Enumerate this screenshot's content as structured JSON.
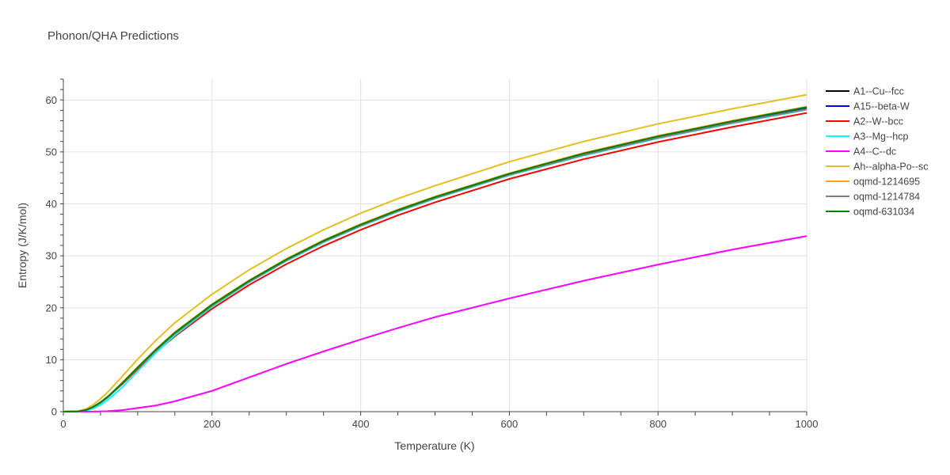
{
  "chart_data": {
    "type": "line",
    "title": "Phonon/QHA Predictions",
    "xlabel": "Temperature (K)",
    "ylabel": "Entropy (J/K/mol)",
    "xlim": [
      0,
      1000
    ],
    "ylim": [
      0,
      64
    ],
    "xticks": [
      0,
      200,
      400,
      600,
      800,
      1000
    ],
    "yticks": [
      0,
      10,
      20,
      30,
      40,
      50,
      60
    ],
    "grid": true,
    "legend_position": "right",
    "series": [
      {
        "name": "A1--Cu--fcc",
        "color": "#000000",
        "x": [
          0,
          20,
          30,
          40,
          50,
          60,
          80,
          100,
          125,
          150,
          200,
          250,
          300,
          350,
          400,
          450,
          500,
          600,
          700,
          800,
          900,
          1000
        ],
        "y": [
          0,
          0.05,
          0.3,
          0.9,
          1.8,
          2.9,
          5.6,
          8.5,
          12.0,
          15.2,
          20.6,
          25.2,
          29.3,
          32.9,
          36.0,
          38.8,
          41.3,
          45.8,
          49.6,
          52.9,
          55.8,
          58.5
        ]
      },
      {
        "name": "A15--beta-W",
        "color": "#0000ff",
        "x": [
          0,
          20,
          30,
          40,
          50,
          60,
          80,
          100,
          125,
          150,
          200,
          250,
          300,
          350,
          400,
          450,
          500,
          600,
          700,
          800,
          900,
          1000
        ],
        "y": [
          0,
          0.05,
          0.3,
          0.85,
          1.7,
          2.8,
          5.5,
          8.4,
          11.9,
          15.1,
          20.5,
          25.1,
          29.2,
          32.8,
          35.9,
          38.7,
          41.2,
          45.7,
          49.5,
          52.8,
          55.7,
          58.3
        ]
      },
      {
        "name": "A2--W--bcc",
        "color": "#ff0000",
        "x": [
          0,
          20,
          30,
          40,
          50,
          60,
          80,
          100,
          125,
          150,
          200,
          250,
          300,
          350,
          400,
          450,
          500,
          600,
          700,
          800,
          900,
          1000
        ],
        "y": [
          0,
          0.05,
          0.3,
          0.9,
          1.8,
          2.9,
          5.4,
          8.2,
          11.5,
          14.5,
          19.8,
          24.4,
          28.4,
          31.9,
          35.0,
          37.8,
          40.3,
          44.8,
          48.6,
          51.9,
          54.8,
          57.5
        ]
      },
      {
        "name": "A3--Mg--hcp",
        "color": "#00ffff",
        "x": [
          0,
          20,
          30,
          40,
          50,
          60,
          80,
          100,
          125,
          150,
          200,
          250,
          300,
          350,
          400,
          450,
          500,
          600,
          700,
          800,
          900,
          1000
        ],
        "y": [
          0,
          0.02,
          0.15,
          0.6,
          1.3,
          2.3,
          4.8,
          7.8,
          11.4,
          14.7,
          20.2,
          24.9,
          29.0,
          32.6,
          35.7,
          38.5,
          41.0,
          45.5,
          49.3,
          52.6,
          55.5,
          58.1
        ]
      },
      {
        "name": "A4--C--dc",
        "color": "#ff00ff",
        "x": [
          0,
          40,
          60,
          80,
          100,
          125,
          150,
          200,
          250,
          300,
          350,
          400,
          450,
          500,
          550,
          600,
          700,
          800,
          900,
          1000
        ],
        "y": [
          0,
          0.02,
          0.1,
          0.3,
          0.7,
          1.2,
          2.0,
          4.0,
          6.6,
          9.2,
          11.6,
          13.9,
          16.1,
          18.2,
          20.0,
          21.8,
          25.2,
          28.3,
          31.2,
          33.8
        ]
      },
      {
        "name": "Ah--alpha-Po--sc",
        "color": "#e3c020",
        "x": [
          0,
          20,
          30,
          40,
          50,
          60,
          80,
          100,
          125,
          150,
          200,
          250,
          300,
          350,
          400,
          450,
          500,
          600,
          700,
          800,
          900,
          1000
        ],
        "y": [
          0,
          0.1,
          0.5,
          1.3,
          2.5,
          3.8,
          6.9,
          10.1,
          13.8,
          17.1,
          22.6,
          27.3,
          31.4,
          35.0,
          38.2,
          41.0,
          43.5,
          48.1,
          52.0,
          55.4,
          58.3,
          61.0
        ]
      },
      {
        "name": "oqmd-1214695",
        "color": "#ffa500",
        "x": [
          0,
          20,
          30,
          40,
          50,
          60,
          80,
          100,
          125,
          150,
          200,
          250,
          300,
          350,
          400,
          450,
          500,
          600,
          700,
          800,
          900,
          1000
        ],
        "y": [
          0,
          0.05,
          0.3,
          0.9,
          1.8,
          2.9,
          5.7,
          8.6,
          12.1,
          15.3,
          20.7,
          25.3,
          29.4,
          33.0,
          36.1,
          38.9,
          41.4,
          45.9,
          49.8,
          53.1,
          56.0,
          58.7
        ]
      },
      {
        "name": "oqmd-1214784",
        "color": "#808080",
        "x": [
          0,
          20,
          30,
          40,
          50,
          60,
          80,
          100,
          125,
          150,
          200,
          250,
          300,
          350,
          400,
          450,
          500,
          600,
          700,
          800,
          900,
          1000
        ],
        "y": [
          0,
          0.05,
          0.3,
          0.85,
          1.7,
          2.8,
          5.5,
          8.4,
          11.8,
          15.0,
          20.4,
          25.0,
          29.1,
          32.7,
          35.8,
          38.6,
          41.1,
          45.6,
          49.4,
          52.7,
          55.6,
          58.2
        ]
      },
      {
        "name": "oqmd-631034",
        "color": "#008000",
        "x": [
          0,
          20,
          30,
          40,
          50,
          60,
          80,
          100,
          125,
          150,
          200,
          250,
          300,
          350,
          400,
          450,
          500,
          600,
          700,
          800,
          900,
          1000
        ],
        "y": [
          0,
          0.05,
          0.3,
          0.9,
          1.8,
          2.9,
          5.6,
          8.5,
          12.0,
          15.2,
          20.6,
          25.2,
          29.3,
          32.9,
          36.0,
          38.8,
          41.3,
          45.8,
          49.7,
          53.0,
          55.9,
          58.6
        ]
      }
    ]
  }
}
